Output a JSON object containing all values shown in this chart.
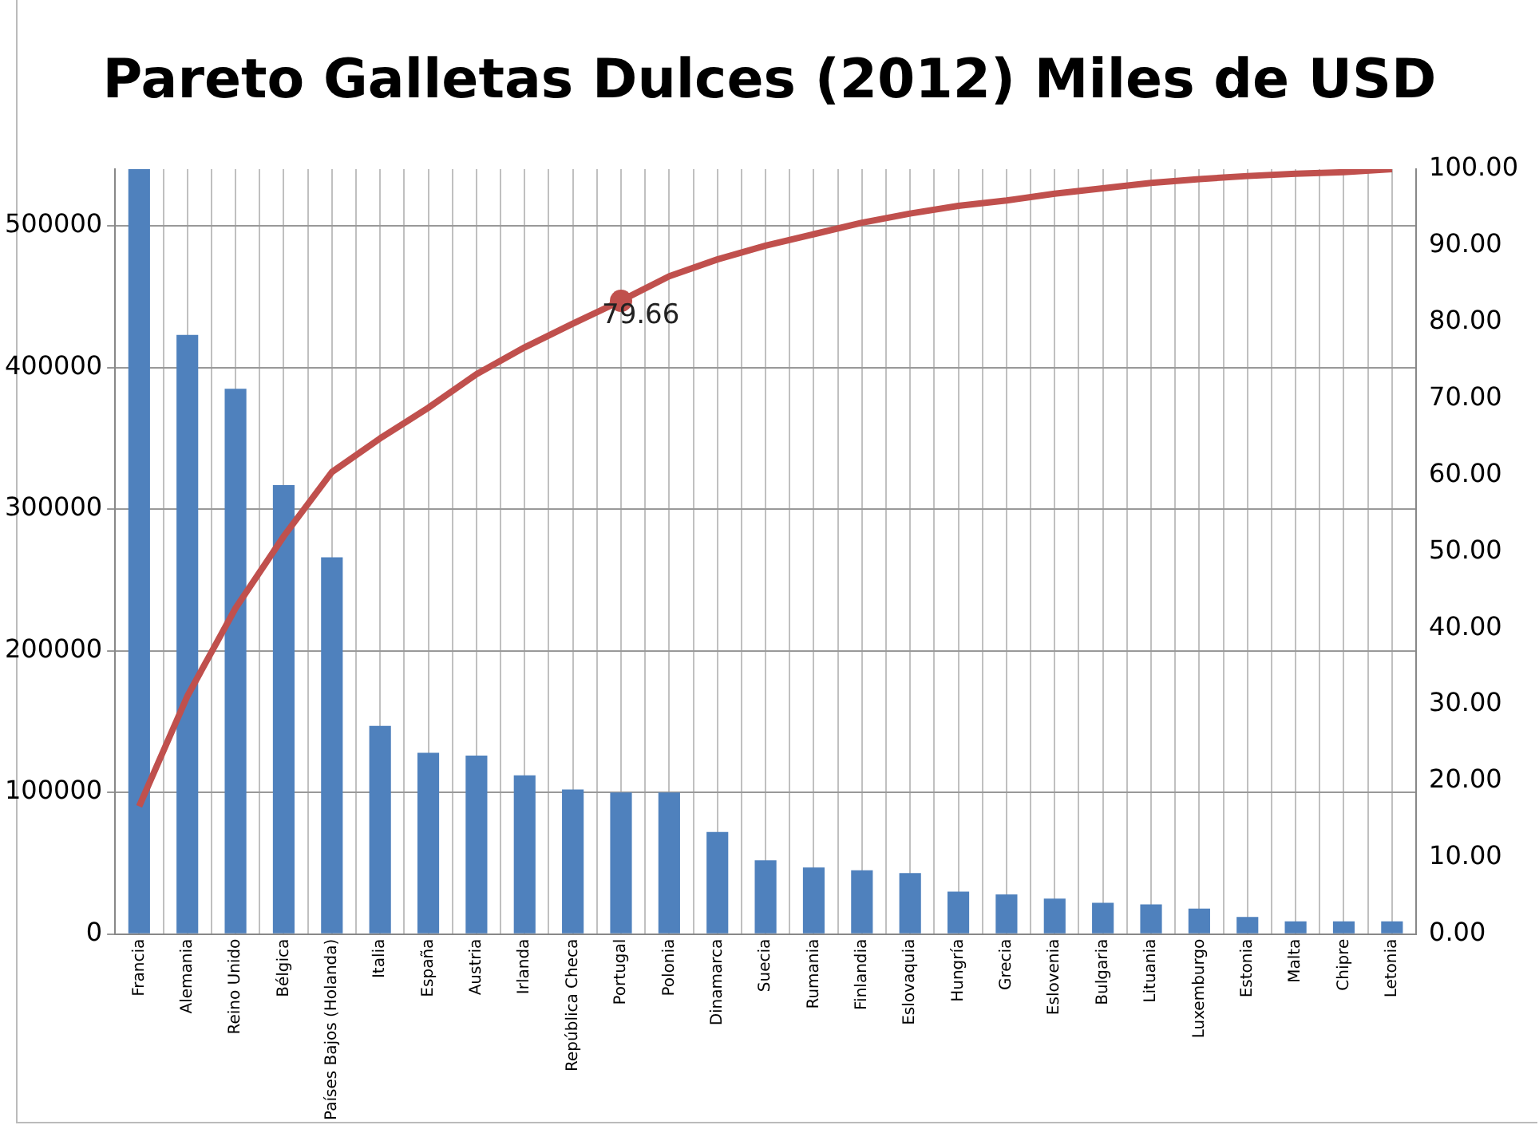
{
  "chart_data": {
    "type": "bar",
    "title": "Pareto Galletas Dulces (2012) Miles de USD",
    "categories": [
      "Francia",
      "Alemania",
      "Reino Unido",
      "Bélgica",
      "Países Bajos (Holanda)",
      "Italia",
      "España",
      "Austria",
      "Irlanda",
      "República Checa",
      "Portugal",
      "Polonia",
      "Dinamarca",
      "Suecia",
      "Rumania",
      "Finlandia",
      "Eslovaquia",
      "Hungría",
      "Grecia",
      "Eslovenia",
      "Bulgaria",
      "Lituania",
      "Luxemburgo",
      "Estonia",
      "Malta",
      "Chipre",
      "Letonia"
    ],
    "series": [
      {
        "color": "#4f81bd",
        "values": [
          540000,
          423000,
          385000,
          317000,
          266000,
          147000,
          128000,
          126000,
          112000,
          102000,
          100000,
          100000,
          72000,
          52000,
          47000,
          45000,
          43000,
          30000,
          28000,
          25000,
          22000,
          21000,
          18000,
          12000,
          9000,
          9000,
          9000
        ]
      },
      {
        "type": "line",
        "axis": "y2",
        "color": "#c0504d",
        "values": [
          16.7,
          31.1,
          42.6,
          52.0,
          60.4,
          64.8,
          68.8,
          73.2,
          76.7,
          79.8,
          82.8,
          86.0,
          88.2,
          90.0,
          91.5,
          93.0,
          94.2,
          95.2,
          95.9,
          96.8,
          97.5,
          98.2,
          98.7,
          99.1,
          99.4,
          99.6,
          100
        ]
      }
    ],
    "ylim": [
      0,
      540000
    ],
    "yticks": [
      0,
      100000,
      200000,
      300000,
      400000,
      500000
    ],
    "y2lim": [
      0,
      100
    ],
    "y2ticks": [
      {
        "value": 0,
        "label": "0.00"
      },
      {
        "value": 10,
        "label": "10.00"
      },
      {
        "value": 20,
        "label": "20.00"
      },
      {
        "value": 30,
        "label": "30.00"
      },
      {
        "value": 40,
        "label": "40.00"
      },
      {
        "value": 50,
        "label": "50.00"
      },
      {
        "value": 60,
        "label": "60.00"
      },
      {
        "value": 70,
        "label": "70.00"
      },
      {
        "value": 80,
        "label": "80.00"
      },
      {
        "value": 90,
        "label": "90.00"
      },
      {
        "value": 100,
        "label": "100.00"
      }
    ],
    "annotations": [
      {
        "text": "79.66",
        "x": "Portugal",
        "y": 447000
      }
    ],
    "grid": true,
    "legend": false,
    "marker": "none",
    "line_style": "solid"
  }
}
